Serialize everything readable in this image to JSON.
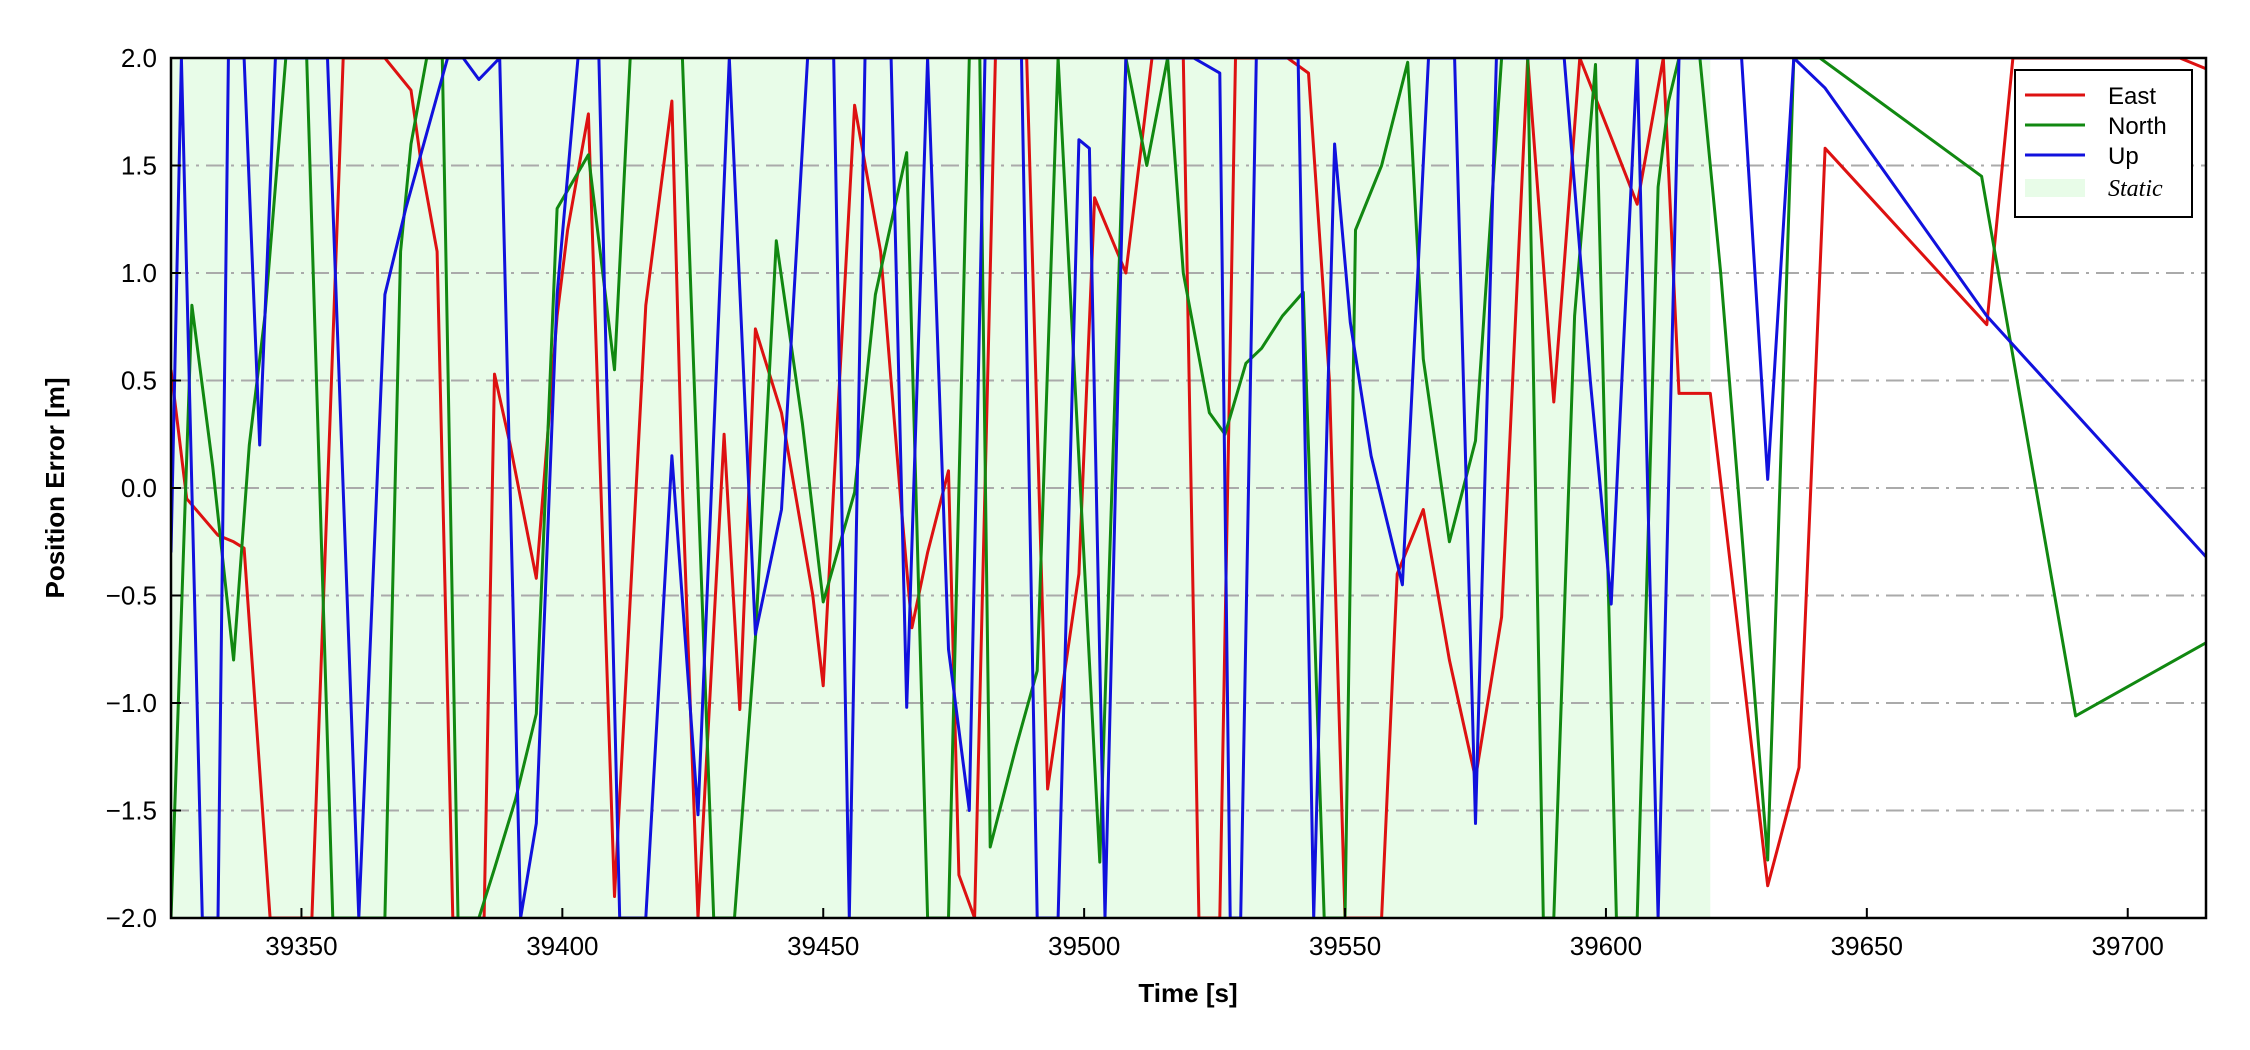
{
  "chart_data": {
    "type": "line",
    "xlabel": "Time [s]",
    "ylabel": "Position Error [m]",
    "xlim": [
      39325,
      39715
    ],
    "ylim": [
      -2.0,
      2.0
    ],
    "xticks": [
      39350,
      39400,
      39450,
      39500,
      39550,
      39600,
      39650,
      39700
    ],
    "xtick_labels": [
      "39350",
      "39400",
      "39450",
      "39500",
      "39550",
      "39600",
      "39650",
      "39700"
    ],
    "yticks": [
      2.0,
      1.5,
      1.0,
      0.5,
      0.0,
      -0.5,
      -1.0,
      -1.5,
      -2.0
    ],
    "ytick_labels": [
      "2.0",
      "1.5",
      "1.0",
      "0.5",
      "0.0",
      "−0.5",
      "−1.0",
      "−1.5",
      "−2.0"
    ],
    "grid": "horizontal dash-dot",
    "legend_position": "top-right",
    "static_region": {
      "x": [
        39325,
        39620
      ],
      "label": "Static",
      "color": "#e8fce8"
    },
    "series": [
      {
        "name": "East",
        "color": "#dd1111",
        "x": [
          39325,
          39328,
          39334,
          39337,
          39339,
          39344,
          39346,
          39352,
          39358,
          39361,
          39366,
          39371,
          39373,
          39376,
          39379,
          39385,
          39387,
          39390,
          39395,
          39399,
          39401,
          39405,
          39410,
          39416,
          39421,
          39423,
          39426,
          39431,
          39434,
          39437,
          39442,
          39448,
          39450,
          39452,
          39456,
          39461,
          39465,
          39467,
          39470,
          39474,
          39476,
          39479,
          39483,
          39486,
          39489,
          39493,
          39499,
          39502,
          39508,
          39513,
          39517,
          39519,
          39522,
          39526,
          39529,
          39534,
          39539,
          39543,
          39547,
          39550,
          39553,
          39557,
          39560,
          39565,
          39570,
          39575,
          39580,
          39585,
          39590,
          39595,
          39601,
          39606,
          39611,
          39614,
          39620,
          39626,
          39631,
          39637,
          39642,
          39673,
          39678,
          39710,
          39715
        ],
        "y": [
          0.55,
          -0.05,
          -0.22,
          -0.25,
          -0.28,
          -2.0,
          -2.0,
          -2.0,
          2.0,
          2.0,
          2.0,
          1.85,
          1.5,
          1.1,
          -2.0,
          -2.0,
          0.53,
          0.2,
          -0.42,
          0.8,
          1.2,
          1.74,
          -1.9,
          0.85,
          1.8,
          0.0,
          -2.0,
          0.25,
          -1.03,
          0.74,
          0.35,
          -0.5,
          -0.92,
          0.0,
          1.78,
          1.1,
          -0.1,
          -0.65,
          -0.3,
          0.08,
          -1.8,
          -2.0,
          2.0,
          2.0,
          2.0,
          -1.4,
          -0.4,
          1.35,
          1.0,
          2.0,
          2.0,
          2.0,
          -2.0,
          -2.0,
          2.0,
          2.0,
          2.0,
          1.93,
          0.5,
          -2.0,
          -2.0,
          -2.0,
          -0.4,
          -0.1,
          -0.8,
          -1.35,
          -0.6,
          2.0,
          0.4,
          2.0,
          1.63,
          1.32,
          2.0,
          0.44,
          0.44,
          -0.8,
          -1.85,
          -1.3,
          1.58,
          0.76,
          2.0,
          2.0,
          1.95
        ]
      },
      {
        "name": "North",
        "color": "#118811",
        "x": [
          39325,
          39329,
          39333,
          39337,
          39340,
          39343,
          39347,
          39351,
          39356,
          39362,
          39366,
          39369,
          39371,
          39374,
          39377,
          39380,
          39384,
          39387,
          39391,
          39395,
          39399,
          39405,
          39410,
          39413,
          39418,
          39423,
          39429,
          39433,
          39437,
          39441,
          39446,
          39450,
          39456,
          39460,
          39466,
          39470,
          39474,
          39478,
          39480,
          39482,
          39487,
          39491,
          39495,
          39503,
          39508,
          39512,
          39516,
          39519,
          39524,
          39527,
          39531,
          39534,
          39538,
          39542,
          39546,
          39550,
          39552,
          39557,
          39562,
          39565,
          39570,
          39575,
          39580,
          39585,
          39588,
          39590,
          39594,
          39598,
          39602,
          39606,
          39610,
          39612,
          39614,
          39618,
          39622,
          39626,
          39631,
          39636,
          39641,
          39672,
          39690,
          39715
        ],
        "y": [
          -2.0,
          0.85,
          0.1,
          -0.8,
          0.2,
          0.8,
          2.0,
          2.0,
          -2.0,
          -2.0,
          -2.0,
          1.1,
          1.6,
          2.0,
          2.0,
          -2.0,
          -2.0,
          -1.77,
          -1.45,
          -1.05,
          1.3,
          1.55,
          0.55,
          2.0,
          2.0,
          2.0,
          -2.0,
          -2.0,
          -0.7,
          1.15,
          0.3,
          -0.53,
          -0.02,
          0.9,
          1.56,
          -2.0,
          -2.0,
          2.0,
          2.0,
          -1.67,
          -1.2,
          -0.85,
          2.0,
          -1.74,
          2.0,
          1.5,
          2.0,
          1.0,
          0.35,
          0.25,
          0.58,
          0.65,
          0.8,
          0.91,
          -2.0,
          -2.0,
          1.2,
          1.5,
          1.98,
          0.6,
          -0.25,
          0.22,
          2.0,
          2.0,
          -2.0,
          -2.0,
          0.8,
          1.97,
          -2.0,
          -2.0,
          1.4,
          1.8,
          2.0,
          2.0,
          1.0,
          -0.2,
          -1.73,
          2.0,
          2.0,
          1.45,
          -1.06,
          -0.72
        ]
      },
      {
        "name": "Up",
        "color": "#1111dd",
        "x": [
          39325,
          39327,
          39331,
          39334,
          39336,
          39339,
          39342,
          39345,
          39349,
          39355,
          39361,
          39366,
          39370,
          39374,
          39378,
          39381,
          39384,
          39388,
          39392,
          39395,
          39399,
          39403,
          39407,
          39411,
          39416,
          39421,
          39426,
          39432,
          39437,
          39442,
          39447,
          39452,
          39455,
          39458,
          39463,
          39466,
          39470,
          39474,
          39478,
          39481,
          39484,
          39488,
          39491,
          39495,
          39499,
          39501,
          39504,
          39508,
          39512,
          39516,
          39521,
          39526,
          39528,
          39530,
          39533,
          39537,
          39541,
          39544,
          39548,
          39551,
          39555,
          39561,
          39566,
          39571,
          39575,
          39579,
          39583,
          39588,
          39592,
          39597,
          39601,
          39606,
          39610,
          39614,
          39620,
          39626,
          39631,
          39636,
          39642,
          39673,
          39715
        ],
        "y": [
          -0.3,
          2.0,
          -2.0,
          -2.0,
          2.0,
          2.0,
          0.2,
          2.0,
          2.0,
          2.0,
          -2.0,
          0.9,
          1.3,
          1.65,
          2.0,
          2.0,
          1.9,
          2.0,
          -2.0,
          -1.56,
          0.9,
          2.0,
          2.0,
          -2.0,
          -2.0,
          0.15,
          -1.52,
          2.0,
          -0.68,
          -0.1,
          2.0,
          2.0,
          -2.0,
          2.0,
          2.0,
          -1.02,
          2.0,
          -0.75,
          -1.5,
          2.0,
          2.0,
          2.0,
          -2.0,
          -2.0,
          1.62,
          1.58,
          -2.0,
          2.0,
          2.0,
          2.0,
          2.0,
          1.93,
          -2.0,
          -2.0,
          2.0,
          2.0,
          2.0,
          -2.0,
          1.6,
          0.77,
          0.15,
          -0.45,
          2.0,
          2.0,
          -1.56,
          2.0,
          2.0,
          2.0,
          2.0,
          0.5,
          -0.54,
          2.0,
          -2.0,
          2.0,
          2.0,
          2.0,
          0.04,
          2.0,
          1.86,
          0.8,
          -0.32
        ]
      }
    ]
  }
}
